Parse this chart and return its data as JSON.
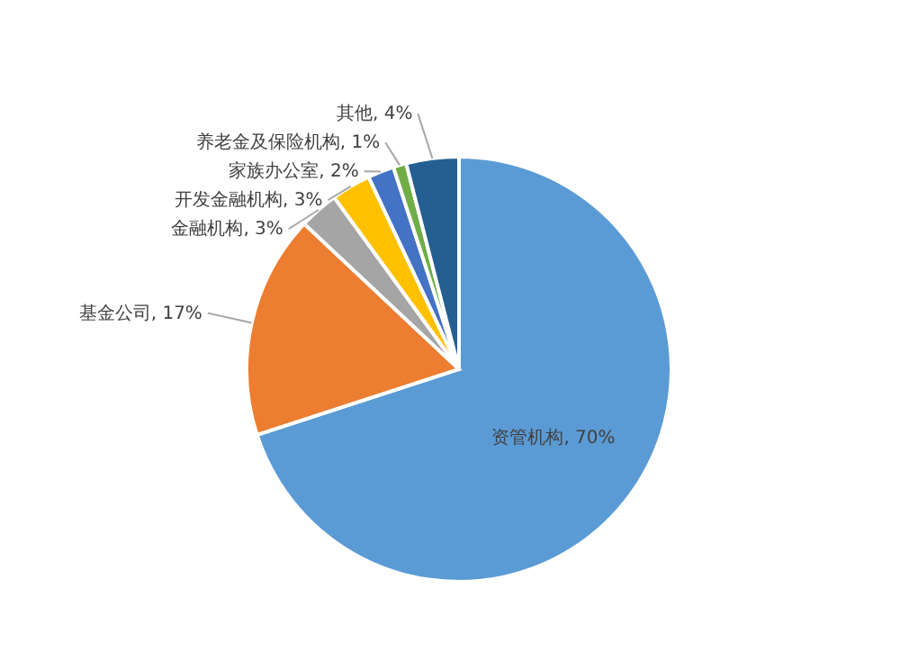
{
  "chart_data": {
    "type": "pie",
    "categories": [
      "资管机构",
      "基金公司",
      "金融机构",
      "开发金融机构",
      "家族办公室",
      "养老金及保险机构",
      "其他"
    ],
    "values": [
      70,
      17,
      3,
      3,
      2,
      1,
      4
    ],
    "value_labels": [
      "70%",
      "17%",
      "3%",
      "3%",
      "2%",
      "1%",
      "4%"
    ],
    "colors": [
      "#5b9bd5",
      "#ed7d31",
      "#a5a5a5",
      "#ffc000",
      "#4472c4",
      "#70ad47",
      "#255e91"
    ],
    "legend": false
  }
}
